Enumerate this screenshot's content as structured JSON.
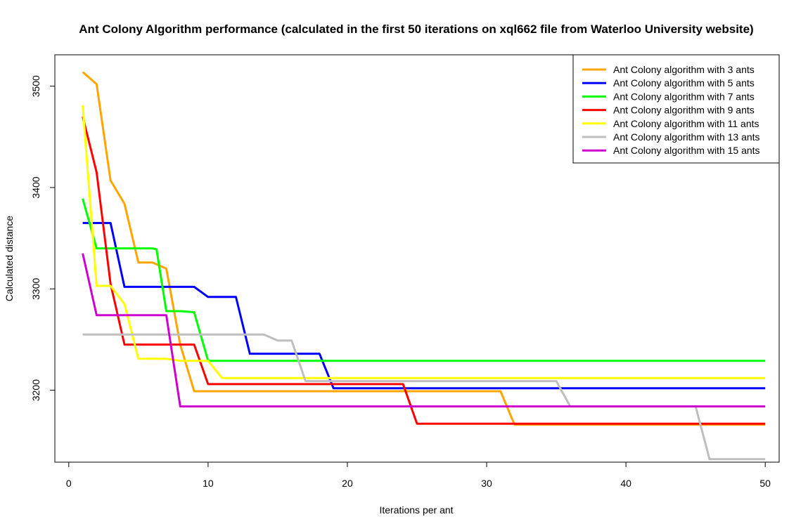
{
  "chart_data": {
    "type": "line",
    "title": "Ant Colony Algorithm performance (calculated in the first 50 iterations on xql662 file from Waterloo University website)",
    "xlabel": "Iterations per ant",
    "ylabel": "Calculated distance",
    "xlim": [
      -1,
      51
    ],
    "ylim": [
      3129,
      3531
    ],
    "xticks": [
      0,
      10,
      20,
      30,
      40,
      50
    ],
    "yticks": [
      3200,
      3300,
      3400,
      3500
    ],
    "grid": false,
    "legend_position": "top-right",
    "series": [
      {
        "name": "Ant Colony algorithm with 3 ants",
        "color": "#FFA500",
        "points": [
          [
            1,
            3514
          ],
          [
            2,
            3502
          ],
          [
            3,
            3407
          ],
          [
            4,
            3384
          ],
          [
            5,
            3326
          ],
          [
            6,
            3326
          ],
          [
            7,
            3320
          ],
          [
            8,
            3245
          ],
          [
            9,
            3199
          ],
          [
            31,
            3199
          ],
          [
            32,
            3166
          ],
          [
            50,
            3166
          ]
        ]
      },
      {
        "name": "Ant Colony algorithm with 5 ants",
        "color": "#0000FF",
        "points": [
          [
            1,
            3365
          ],
          [
            3,
            3365
          ],
          [
            4,
            3302
          ],
          [
            9,
            3302
          ],
          [
            10,
            3292
          ],
          [
            12,
            3292
          ],
          [
            13,
            3236
          ],
          [
            18,
            3236
          ],
          [
            19,
            3202
          ],
          [
            50,
            3202
          ]
        ]
      },
      {
        "name": "Ant Colony algorithm with 7 ants",
        "color": "#00FF00",
        "points": [
          [
            1,
            3389
          ],
          [
            2,
            3340
          ],
          [
            6,
            3340
          ],
          [
            6.3,
            3339
          ],
          [
            7,
            3278
          ],
          [
            8,
            3278
          ],
          [
            9,
            3277
          ],
          [
            10,
            3229
          ],
          [
            50,
            3229
          ]
        ]
      },
      {
        "name": "Ant Colony algorithm with 9 ants",
        "color": "#FF0000",
        "points": [
          [
            1,
            3470
          ],
          [
            2,
            3415
          ],
          [
            3,
            3305
          ],
          [
            4,
            3245
          ],
          [
            9,
            3245
          ],
          [
            10,
            3206
          ],
          [
            24,
            3206
          ],
          [
            25,
            3167
          ],
          [
            50,
            3167
          ]
        ]
      },
      {
        "name": "Ant Colony algorithm with 11 ants",
        "color": "#FFFF00",
        "points": [
          [
            1,
            3481
          ],
          [
            2,
            3303
          ],
          [
            3,
            3303
          ],
          [
            4,
            3285
          ],
          [
            5,
            3231
          ],
          [
            7,
            3231
          ],
          [
            8,
            3229
          ],
          [
            10,
            3229
          ],
          [
            11,
            3212
          ],
          [
            50,
            3212
          ]
        ]
      },
      {
        "name": "Ant Colony algorithm with 13 ants",
        "color": "#BEBEBE",
        "points": [
          [
            1,
            3255
          ],
          [
            14,
            3255
          ],
          [
            15,
            3249
          ],
          [
            16,
            3249
          ],
          [
            17,
            3209
          ],
          [
            35,
            3209
          ],
          [
            36,
            3184
          ],
          [
            45,
            3184
          ],
          [
            46,
            3132
          ],
          [
            50,
            3132
          ]
        ]
      },
      {
        "name": "Ant Colony algorithm with 15 ants",
        "color": "#CD00CD",
        "points": [
          [
            1,
            3335
          ],
          [
            2,
            3274
          ],
          [
            7,
            3274
          ],
          [
            8,
            3184
          ],
          [
            50,
            3184
          ]
        ]
      }
    ]
  }
}
